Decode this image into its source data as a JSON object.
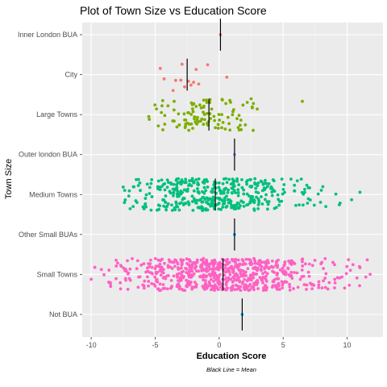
{
  "chart_data": {
    "type": "scatter",
    "title": "Plot of Town Size vs Education Score",
    "xlabel": "Education Score",
    "ylabel": "Town Size",
    "caption": "Black Line = Mean",
    "xlim": [
      -10.7,
      12.8
    ],
    "xticks": [
      "-10",
      "-5",
      "0",
      "5",
      "10"
    ],
    "xtick_values": [
      -10,
      -5,
      0,
      5,
      10
    ],
    "grid": true,
    "legend": "none",
    "categories": [
      "Inner London BUA",
      "City",
      "Large Towns",
      "Outer london BUA",
      "Medium Towns",
      "Other Small BUAs",
      "Small Towns",
      "Not BUA"
    ],
    "series": [
      {
        "category": "Inner London BUA",
        "color": "#F8766D",
        "mean": 0.1,
        "n": 1,
        "range": [
          0.1,
          0.1
        ],
        "points": [
          0.1
        ]
      },
      {
        "category": "City",
        "color": "#F8766D",
        "mean": -2.5,
        "n": 14,
        "range": [
          -4.6,
          0.6
        ],
        "points": [
          -4.6,
          -4.3,
          -3.6,
          -3.4,
          -3.0,
          -2.9,
          -2.7,
          -2.4,
          -2.2,
          -2.0,
          -1.8,
          -1.6,
          -0.9,
          0.6
        ]
      },
      {
        "category": "Large Towns",
        "color": "#7CAE00",
        "mean": -0.8,
        "n": 110,
        "range": [
          -5.5,
          6.5
        ],
        "points": []
      },
      {
        "category": "Outer london BUA",
        "color": "#C77CFF",
        "mean": 1.2,
        "n": 1,
        "range": [
          1.2,
          1.2
        ],
        "points": [
          1.2
        ]
      },
      {
        "category": "Medium Towns",
        "color": "#00BF7D",
        "mean": -0.3,
        "n": 420,
        "range": [
          -7.5,
          11.0
        ],
        "points": []
      },
      {
        "category": "Other Small BUAs",
        "color": "#00A9FF",
        "mean": 1.2,
        "n": 1,
        "range": [
          1.2,
          1.2
        ],
        "points": [
          1.2
        ]
      },
      {
        "category": "Small Towns",
        "color": "#FF61C3",
        "mean": 0.3,
        "n": 700,
        "range": [
          -10.0,
          11.8
        ],
        "points": []
      },
      {
        "category": "Not BUA",
        "color": "#00B0F6",
        "mean": 1.8,
        "n": 1,
        "range": [
          1.8,
          1.8
        ],
        "points": [
          1.8
        ]
      }
    ]
  }
}
